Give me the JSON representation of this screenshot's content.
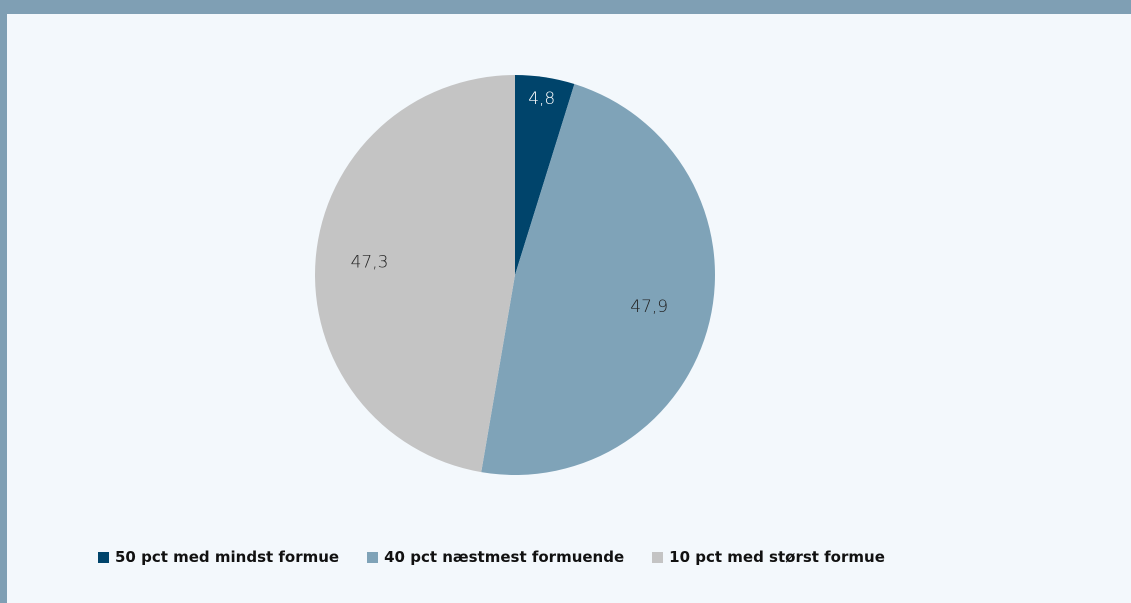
{
  "chart_data": {
    "type": "pie",
    "title": "",
    "categories": [
      "50 pct med mindst formue",
      "40 pct næstmest formuende",
      "10 pct med størst formue"
    ],
    "values": [
      4.8,
      47.9,
      47.3
    ],
    "value_labels": [
      "4,8",
      "47,9",
      "47,3"
    ],
    "colors": [
      "#00446b",
      "#7fa3b8",
      "#c4c4c4"
    ],
    "label_colors": [
      "#ffffff",
      "#222222",
      "#222222"
    ],
    "start_angle": "12 o'clock",
    "direction": "clockwise",
    "legend_position": "bottom"
  },
  "colors": {
    "frame": "#7f9fb4",
    "background": "#f3f8fc"
  }
}
